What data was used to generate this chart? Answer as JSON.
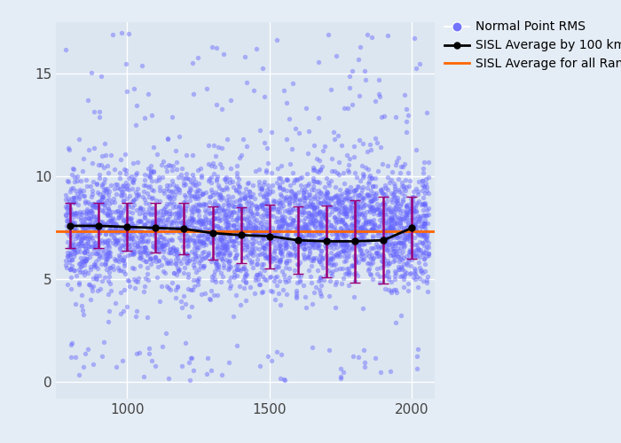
{
  "scatter_color": "#6666ff",
  "scatter_alpha": 0.45,
  "scatter_size": 15,
  "avg_line_color": "black",
  "avg_marker": "o",
  "avg_marker_size": 5,
  "errorbar_color": "#990077",
  "hline_color": "#ff6600",
  "hline_value": 7.35,
  "xlim": [
    750,
    2080
  ],
  "ylim": [
    -0.8,
    17.5
  ],
  "yticks": [
    0,
    5,
    10,
    15
  ],
  "xticks": [
    1000,
    1500,
    2000
  ],
  "bin_centers": [
    800,
    900,
    1000,
    1100,
    1200,
    1300,
    1400,
    1500,
    1600,
    1700,
    1800,
    1900,
    2000
  ],
  "bin_avgs": [
    7.6,
    7.6,
    7.55,
    7.5,
    7.45,
    7.25,
    7.15,
    7.1,
    6.9,
    6.85,
    6.85,
    6.9,
    7.5
  ],
  "bin_stds": [
    1.1,
    1.1,
    1.15,
    1.2,
    1.25,
    1.3,
    1.35,
    1.55,
    1.65,
    1.75,
    2.0,
    2.1,
    1.5
  ],
  "legend_labels": [
    "Normal Point RMS",
    "SISL Average by 100 km with STD",
    "SISL Average for all Ranges"
  ],
  "bg_color": "#dce6f0",
  "fig_bg_color": "#e4ecf5",
  "grid_color": "white",
  "seed": 42,
  "n_points": 3500
}
